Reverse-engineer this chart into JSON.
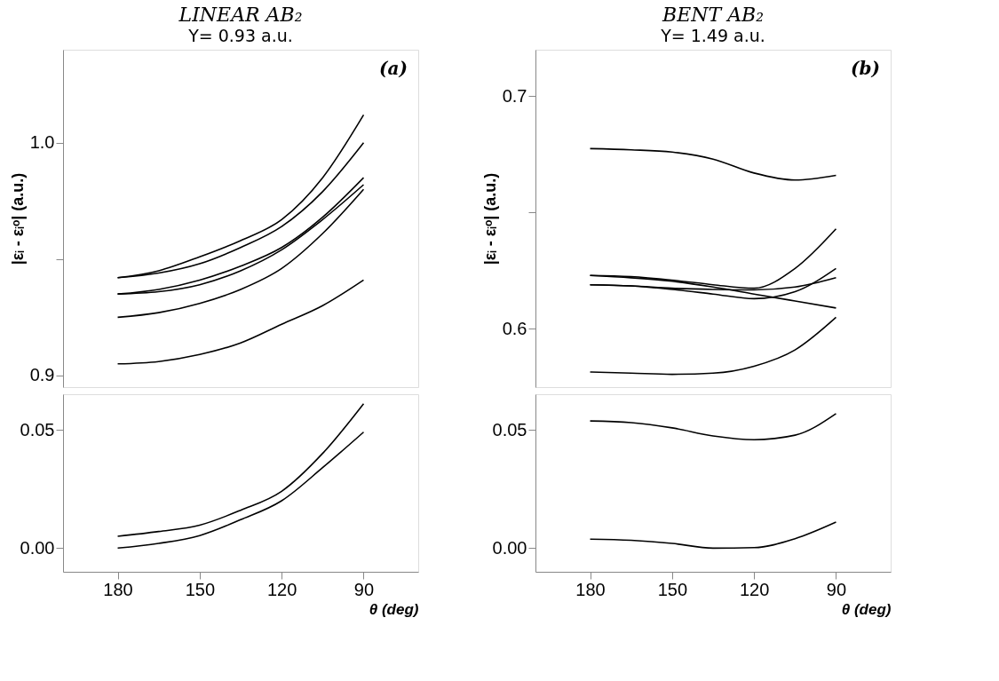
{
  "chart_data": [
    {
      "type": "line",
      "title": "LINEAR AB₂",
      "subtitle": "Y= 0.93 a.u.",
      "annotations": [
        "(a)"
      ],
      "ylabel": "|εᵢ - εᵢᵒ|  (a.u.)",
      "x": [
        180,
        165,
        150,
        135,
        120,
        105,
        90
      ],
      "xlim": [
        200,
        70
      ],
      "ylim": [
        0.895,
        1.04
      ],
      "yticks": [
        0.9,
        {
          "value": 0.95,
          "label": null
        },
        {
          "value": 1.0,
          "label": "1.0"
        }
      ],
      "tick_labels": "y",
      "grid": false,
      "legend": false,
      "line_style": "solid",
      "series": [
        {
          "color": "#000000",
          "values": [
            0.942,
            0.945,
            0.951,
            0.958,
            0.967,
            0.985,
            1.012
          ]
        },
        {
          "color": "#000000",
          "values": [
            0.942,
            0.944,
            0.948,
            0.955,
            0.964,
            0.979,
            1.0
          ]
        },
        {
          "color": "#000000",
          "values": [
            0.935,
            0.937,
            0.941,
            0.947,
            0.955,
            0.968,
            0.985
          ]
        },
        {
          "color": "#000000",
          "values": [
            0.935,
            0.936,
            0.939,
            0.945,
            0.954,
            0.967,
            0.982
          ]
        },
        {
          "color": "#000000",
          "values": [
            0.925,
            0.927,
            0.931,
            0.937,
            0.946,
            0.961,
            0.98
          ]
        },
        {
          "color": "#000000",
          "values": [
            0.905,
            0.906,
            0.909,
            0.914,
            0.922,
            0.93,
            0.941
          ]
        }
      ]
    },
    {
      "type": "line",
      "xlabel": "θ (deg)",
      "x": [
        180,
        165,
        150,
        135,
        120,
        105,
        90
      ],
      "xlim": [
        200,
        70
      ],
      "xticks": [
        180,
        150,
        120,
        90
      ],
      "ylim": [
        -0.01,
        0.065
      ],
      "yticks": [
        {
          "value": 0,
          "label": "0.00"
        },
        0.05
      ],
      "grid": false,
      "legend": false,
      "line_style": "solid",
      "series": [
        {
          "color": "#000000",
          "values": [
            0.005,
            0.007,
            0.0097,
            0.016,
            0.024,
            0.04,
            0.061
          ]
        },
        {
          "color": "#000000",
          "values": [
            0.0,
            0.002,
            0.0053,
            0.012,
            0.02,
            0.034,
            0.049
          ]
        }
      ]
    },
    {
      "type": "line",
      "title": "BENT AB₂",
      "subtitle": "Y= 1.49 a.u.",
      "annotations": [
        "(b)"
      ],
      "ylabel": "|εᵢ - εᵢᵒ|  (a.u.)",
      "x": [
        180,
        165,
        150,
        135,
        120,
        105,
        90
      ],
      "xlim": [
        200,
        70
      ],
      "ylim": [
        0.575,
        0.72
      ],
      "yticks": [
        0.6,
        {
          "value": 0.65,
          "label": null
        },
        0.7
      ],
      "tick_labels": "y",
      "grid": false,
      "legend": false,
      "line_style": "solid",
      "series": [
        {
          "color": "#000000",
          "values": [
            0.6775,
            0.677,
            0.676,
            0.673,
            0.667,
            0.664,
            0.666
          ]
        },
        {
          "color": "#000000",
          "values": [
            0.623,
            0.6225,
            0.621,
            0.619,
            0.6175,
            0.626,
            0.643
          ]
        },
        {
          "color": "#000000",
          "values": [
            0.623,
            0.622,
            0.6205,
            0.618,
            0.615,
            0.612,
            0.609
          ]
        },
        {
          "color": "#000000",
          "values": [
            0.619,
            0.6185,
            0.617,
            0.615,
            0.613,
            0.616,
            0.626
          ]
        },
        {
          "color": "#000000",
          "values": [
            0.619,
            0.6185,
            0.6175,
            0.617,
            0.6168,
            0.618,
            0.622
          ]
        },
        {
          "color": "#000000",
          "values": [
            0.5815,
            0.581,
            0.5805,
            0.581,
            0.584,
            0.591,
            0.605
          ]
        }
      ]
    },
    {
      "type": "line",
      "xlabel": "θ (deg)",
      "x": [
        180,
        165,
        150,
        135,
        120,
        105,
        90
      ],
      "xlim": [
        200,
        70
      ],
      "xticks": [
        180,
        150,
        120,
        90
      ],
      "ylim": [
        -0.01,
        0.065
      ],
      "yticks": [
        {
          "value": 0,
          "label": "0.00"
        },
        0.05
      ],
      "grid": false,
      "legend": false,
      "line_style": "solid",
      "series": [
        {
          "color": "#000000",
          "values": [
            0.0537,
            0.053,
            0.0508,
            0.0474,
            0.0458,
            0.0477,
            0.0568
          ]
        },
        {
          "color": "#000000",
          "values": [
            0.0038,
            0.0033,
            0.002,
            0.0,
            0.0002,
            0.004,
            0.011
          ]
        }
      ]
    }
  ]
}
